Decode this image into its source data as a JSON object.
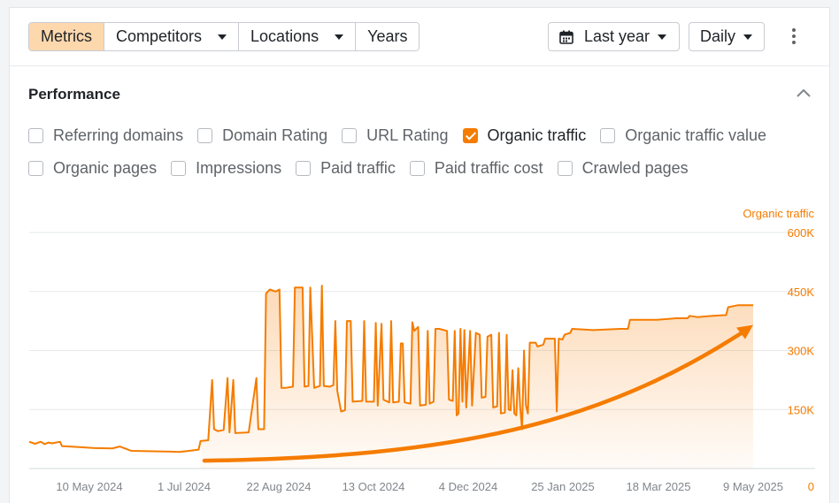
{
  "toolbar": {
    "tabs": [
      {
        "label": "Metrics",
        "active": true,
        "has_dropdown": false
      },
      {
        "label": "Competitors",
        "active": false,
        "has_dropdown": true
      },
      {
        "label": "Locations",
        "active": false,
        "has_dropdown": true
      },
      {
        "label": "Years",
        "active": false,
        "has_dropdown": false
      }
    ],
    "period": {
      "label": "Last year",
      "icon": "calendar-icon"
    },
    "granularity": {
      "label": "Daily"
    },
    "more_icon": "more-vertical-icon"
  },
  "performance": {
    "title": "Performance",
    "collapse_icon": "chevron-up-icon",
    "metrics_row1": [
      {
        "label": "Referring domains",
        "checked": false
      },
      {
        "label": "Domain Rating",
        "checked": false
      },
      {
        "label": "URL Rating",
        "checked": false
      },
      {
        "label": "Organic traffic",
        "checked": true
      },
      {
        "label": "Organic traffic value",
        "checked": false
      }
    ],
    "metrics_row2": [
      {
        "label": "Organic pages",
        "checked": false
      },
      {
        "label": "Impressions",
        "checked": false
      },
      {
        "label": "Paid traffic",
        "checked": false
      },
      {
        "label": "Paid traffic cost",
        "checked": false
      },
      {
        "label": "Crawled pages",
        "checked": false
      }
    ]
  },
  "colors": {
    "accent": "#f57c00",
    "active_tab": "#fdd8ad",
    "gridline": "#e6e8eb"
  },
  "chart_data": {
    "type": "area",
    "series": [
      {
        "name": "Organic traffic",
        "color": "#f57c00"
      }
    ],
    "axis_label_right": "Organic traffic",
    "ylim": [
      0,
      600000
    ],
    "y_ticks": [
      {
        "value": 0,
        "label": "0"
      },
      {
        "value": 150000,
        "label": "150K"
      },
      {
        "value": 300000,
        "label": "300K"
      },
      {
        "value": 450000,
        "label": "450K"
      },
      {
        "value": 600000,
        "label": "600K"
      }
    ],
    "x_ticks": [
      "10 May 2024",
      "1 Jul 2024",
      "22 Aug 2024",
      "13 Oct 2024",
      "4 Dec 2024",
      "25 Jan 2025",
      "18 Mar 2025",
      "9 May 2025"
    ],
    "x_domain": [
      "2024-04-28",
      "2025-05-09"
    ],
    "points": [
      [
        "2024-04-28",
        68000
      ],
      [
        "2024-05-01",
        63000
      ],
      [
        "2024-05-04",
        68000
      ],
      [
        "2024-05-06",
        62000
      ],
      [
        "2024-05-08",
        66000
      ],
      [
        "2024-05-10",
        64000
      ],
      [
        "2024-05-14",
        68000
      ],
      [
        "2024-05-15",
        57000
      ],
      [
        "2024-05-22",
        55000
      ],
      [
        "2024-06-01",
        52000
      ],
      [
        "2024-06-10",
        51000
      ],
      [
        "2024-06-14",
        56000
      ],
      [
        "2024-06-20",
        45000
      ],
      [
        "2024-07-10",
        43000
      ],
      [
        "2024-07-15",
        42000
      ],
      [
        "2024-07-20",
        45000
      ],
      [
        "2024-07-25",
        48000
      ],
      [
        "2024-07-26",
        70000
      ],
      [
        "2024-07-30",
        72000
      ],
      [
        "2024-08-01",
        225000
      ],
      [
        "2024-08-02",
        100000
      ],
      [
        "2024-08-04",
        95000
      ],
      [
        "2024-08-07",
        98000
      ],
      [
        "2024-08-09",
        230000
      ],
      [
        "2024-08-10",
        92000
      ],
      [
        "2024-08-12",
        225000
      ],
      [
        "2024-08-13",
        90000
      ],
      [
        "2024-08-20",
        92000
      ],
      [
        "2024-08-24",
        230000
      ],
      [
        "2024-08-25",
        100000
      ],
      [
        "2024-08-28",
        100000
      ],
      [
        "2024-08-29",
        445000
      ],
      [
        "2024-08-31",
        455000
      ],
      [
        "2024-09-03",
        450000
      ],
      [
        "2024-09-05",
        455000
      ],
      [
        "2024-09-06",
        205000
      ],
      [
        "2024-09-08",
        205000
      ],
      [
        "2024-09-12",
        208000
      ],
      [
        "2024-09-13",
        460000
      ],
      [
        "2024-09-17",
        460000
      ],
      [
        "2024-09-18",
        208000
      ],
      [
        "2024-09-20",
        210000
      ],
      [
        "2024-09-21",
        460000
      ],
      [
        "2024-09-23",
        205000
      ],
      [
        "2024-09-26",
        210000
      ],
      [
        "2024-09-27",
        465000
      ],
      [
        "2024-09-28",
        210000
      ],
      [
        "2024-10-01",
        208000
      ],
      [
        "2024-10-03",
        212000
      ],
      [
        "2024-10-04",
        375000
      ],
      [
        "2024-10-05",
        198000
      ],
      [
        "2024-10-07",
        145000
      ],
      [
        "2024-10-09",
        148000
      ],
      [
        "2024-10-10",
        375000
      ],
      [
        "2024-10-12",
        375000
      ],
      [
        "2024-10-13",
        170000
      ],
      [
        "2024-10-18",
        172000
      ],
      [
        "2024-10-19",
        375000
      ],
      [
        "2024-10-20",
        170000
      ],
      [
        "2024-10-24",
        170000
      ],
      [
        "2024-10-25",
        370000
      ],
      [
        "2024-10-26",
        160000
      ],
      [
        "2024-10-28",
        368000
      ],
      [
        "2024-10-29",
        175000
      ],
      [
        "2024-11-01",
        168000
      ],
      [
        "2024-11-02",
        375000
      ],
      [
        "2024-11-03",
        168000
      ],
      [
        "2024-11-06",
        170000
      ],
      [
        "2024-11-07",
        318000
      ],
      [
        "2024-11-08",
        318000
      ],
      [
        "2024-11-09",
        168000
      ],
      [
        "2024-11-12",
        165000
      ],
      [
        "2024-11-13",
        372000
      ],
      [
        "2024-11-14",
        350000
      ],
      [
        "2024-11-16",
        360000
      ],
      [
        "2024-11-17",
        160000
      ],
      [
        "2024-11-20",
        162000
      ],
      [
        "2024-11-21",
        350000
      ],
      [
        "2024-11-22",
        165000
      ],
      [
        "2024-11-24",
        170000
      ],
      [
        "2024-11-25",
        355000
      ],
      [
        "2024-11-27",
        355000
      ],
      [
        "2024-12-01",
        350000
      ],
      [
        "2024-12-02",
        175000
      ],
      [
        "2024-12-04",
        172000
      ],
      [
        "2024-12-05",
        350000
      ],
      [
        "2024-12-06",
        135000
      ],
      [
        "2024-12-07",
        140000
      ],
      [
        "2024-12-08",
        355000
      ],
      [
        "2024-12-09",
        170000
      ],
      [
        "2024-12-10",
        352000
      ],
      [
        "2024-12-11",
        155000
      ],
      [
        "2024-12-13",
        350000
      ],
      [
        "2024-12-14",
        160000
      ],
      [
        "2024-12-16",
        345000
      ],
      [
        "2024-12-18",
        340000
      ],
      [
        "2024-12-19",
        180000
      ],
      [
        "2024-12-21",
        182000
      ],
      [
        "2024-12-22",
        335000
      ],
      [
        "2024-12-24",
        340000
      ],
      [
        "2024-12-25",
        155000
      ],
      [
        "2024-12-27",
        158000
      ],
      [
        "2024-12-28",
        345000
      ],
      [
        "2024-12-29",
        140000
      ],
      [
        "2024-12-31",
        142000
      ],
      [
        "2025-01-01",
        340000
      ],
      [
        "2025-01-02",
        150000
      ],
      [
        "2025-01-03",
        148000
      ],
      [
        "2025-01-04",
        250000
      ],
      [
        "2025-01-05",
        140000
      ],
      [
        "2025-01-06",
        135000
      ],
      [
        "2025-01-07",
        255000
      ],
      [
        "2025-01-08",
        155000
      ],
      [
        "2025-01-09",
        100000
      ],
      [
        "2025-01-10",
        300000
      ],
      [
        "2025-01-11",
        160000
      ],
      [
        "2025-01-12",
        140000
      ],
      [
        "2025-01-13",
        320000
      ],
      [
        "2025-01-16",
        320000
      ],
      [
        "2025-01-17",
        310000
      ],
      [
        "2025-01-20",
        315000
      ],
      [
        "2025-01-21",
        330000
      ],
      [
        "2025-01-26",
        330000
      ],
      [
        "2025-01-27",
        145000
      ],
      [
        "2025-01-28",
        330000
      ],
      [
        "2025-01-30",
        328000
      ],
      [
        "2025-01-31",
        340000
      ],
      [
        "2025-02-03",
        345000
      ],
      [
        "2025-02-04",
        355000
      ],
      [
        "2025-02-15",
        352000
      ],
      [
        "2025-03-01",
        355000
      ],
      [
        "2025-03-05",
        355000
      ],
      [
        "2025-03-06",
        378000
      ],
      [
        "2025-03-20",
        378000
      ],
      [
        "2025-03-30",
        382000
      ],
      [
        "2025-04-05",
        382000
      ],
      [
        "2025-04-06",
        388000
      ],
      [
        "2025-04-10",
        385000
      ],
      [
        "2025-04-18",
        388000
      ],
      [
        "2025-04-25",
        390000
      ],
      [
        "2025-04-26",
        410000
      ],
      [
        "2025-05-01",
        415000
      ],
      [
        "2025-05-05",
        415000
      ],
      [
        "2025-05-09",
        415000
      ]
    ],
    "trend_arrow": {
      "color": "#f57c00",
      "from": [
        "2024-07-28",
        20000
      ],
      "to": [
        "2025-05-09",
        365000
      ]
    },
    "grid": true,
    "legend": "none"
  }
}
